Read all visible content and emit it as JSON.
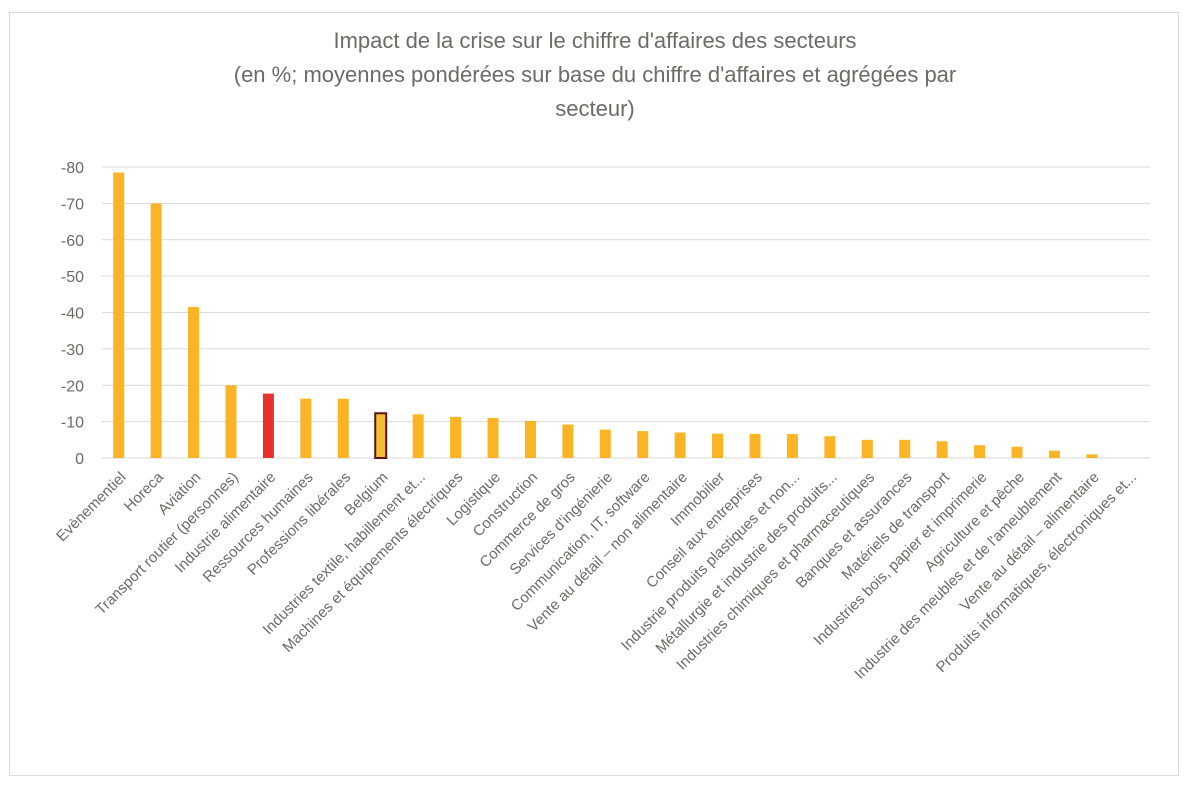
{
  "chart_data": {
    "type": "bar",
    "title": [
      "Impact de la crise sur le chiffre d'affaires des secteurs",
      "(en %; moyennes pondérées sur base du chiffre d'affaires et agrégées par",
      "secteur)"
    ],
    "xlabel": "",
    "ylabel": "",
    "ylim": [
      0,
      -80
    ],
    "yticks": [
      0,
      -10,
      -20,
      -30,
      -40,
      -50,
      -60,
      -70,
      -80
    ],
    "ytick_labels": [
      "0",
      "-10",
      "-20",
      "-30",
      "-40",
      "-50",
      "-60",
      "-70",
      "-80"
    ],
    "categories": [
      "Evènementiel",
      "Horeca",
      "Aviation",
      "Transport routier (personnes)",
      "Industrie alimentaire",
      "Ressources humaines",
      "Professions libérales",
      "Belgium",
      "Industries textile, habillement et...",
      "Machines et équipements électriques",
      "Logistique",
      "Construction",
      "Commerce de gros",
      "Services d'ingénierie",
      "Communication, IT, software",
      "Vente au détail – non alimentaire",
      "Immobilier",
      "Conseil aux entreprises",
      "Industrie produits plastiques et non...",
      "Métallurgie et industrie des produits...",
      "Industries chimiques et pharmaceutiques",
      "Banques et assurances",
      "Matériels de transport",
      "Industries bois, papier et imprimerie",
      "Agriculture et pêche",
      "Industrie des meubles et de l'ameublement",
      "Vente au détail – alimentaire",
      "Produits informatiques, électroniques et..."
    ],
    "values": [
      -78.5,
      -70,
      -41.5,
      -20,
      -17.7,
      -16.3,
      -16.3,
      -12.3,
      -12.0,
      -11.3,
      -11.0,
      -10.2,
      -9.2,
      -7.8,
      -7.4,
      -7.0,
      -6.7,
      -6.6,
      -6.6,
      -6.0,
      -5.0,
      -5.0,
      -4.6,
      -3.5,
      -3.1,
      -2.0,
      -1.0,
      0
    ],
    "highlights": {
      "4": "#e6322b",
      "7": "#f2bd33"
    },
    "highlight_outline": {
      "7": "#5a1414"
    },
    "grid": true,
    "colors": {
      "bar": "#fbb423",
      "grid": "#d9d9d9",
      "text": "#6e6a64"
    }
  }
}
